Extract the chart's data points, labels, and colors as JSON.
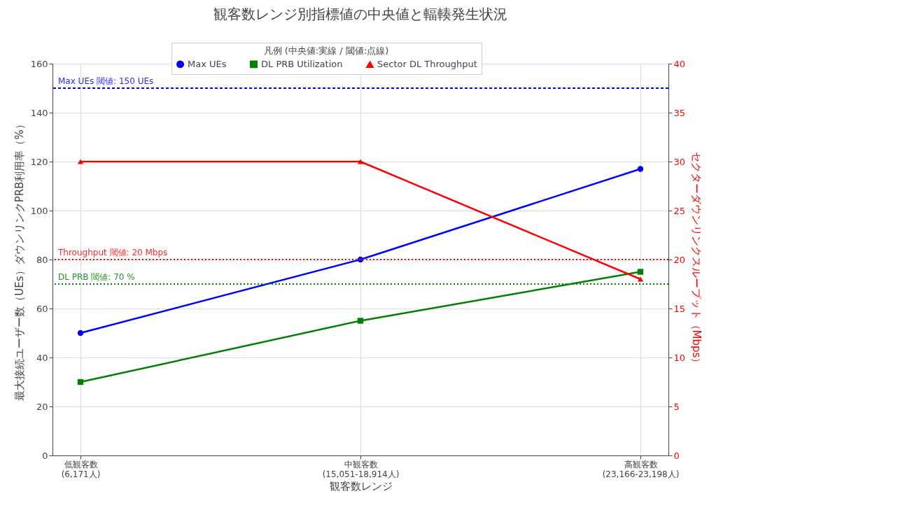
{
  "chart_data": {
    "type": "line",
    "title": "観客数レンジ別指標値の中央値と輻輳発生状況",
    "xlabel": "観客数レンジ",
    "ylabel": "最大接続ユーザー数（UEs）ダウンリンクPRB利用率（%）",
    "y2label": "セクターダウンリンクスループット（Mbps）",
    "categories": [
      "低観客数\n(6,171人)",
      "中観客数\n(15,051-18,914人)",
      "高観客数\n(23,166-23,198人)"
    ],
    "series": [
      {
        "name": "Max UEs",
        "color": "#0000ff",
        "marker": "circle",
        "values": [
          50,
          80,
          117
        ]
      },
      {
        "name": "DL PRB Utilization",
        "color": "#008000",
        "marker": "square",
        "values": [
          30,
          55,
          75
        ]
      },
      {
        "name": "Sector DL Throughput",
        "color": "#ff0000",
        "marker": "triangle",
        "axis": "y2",
        "values": [
          30,
          30,
          18
        ]
      }
    ],
    "ylim": [
      0,
      160
    ],
    "yticks": [
      0,
      20,
      40,
      60,
      80,
      100,
      120,
      140,
      160
    ],
    "y2lim": [
      0,
      40
    ],
    "y2ticks": [
      0,
      5,
      10,
      15,
      20,
      25,
      30,
      35,
      40
    ],
    "ref_lines": [
      {
        "axis": "y",
        "value": 150,
        "label": "Max UEs 閾値: 150 UEs",
        "color": "#0000ff",
        "line_style": "dashed"
      },
      {
        "axis": "y",
        "value": 70,
        "label": "DL PRB 閾値: 70 %",
        "color": "#008000",
        "line_style": "dotted"
      },
      {
        "axis": "y2",
        "value": 20,
        "label": "Throughput 閾値: 20 Mbps",
        "color": "#ff0000",
        "line_style": "dotted"
      }
    ],
    "legend_title": "凡例 (中央値:実線 / 閾値:点線)",
    "legend": "top",
    "grid": true,
    "line_style": "solid"
  }
}
